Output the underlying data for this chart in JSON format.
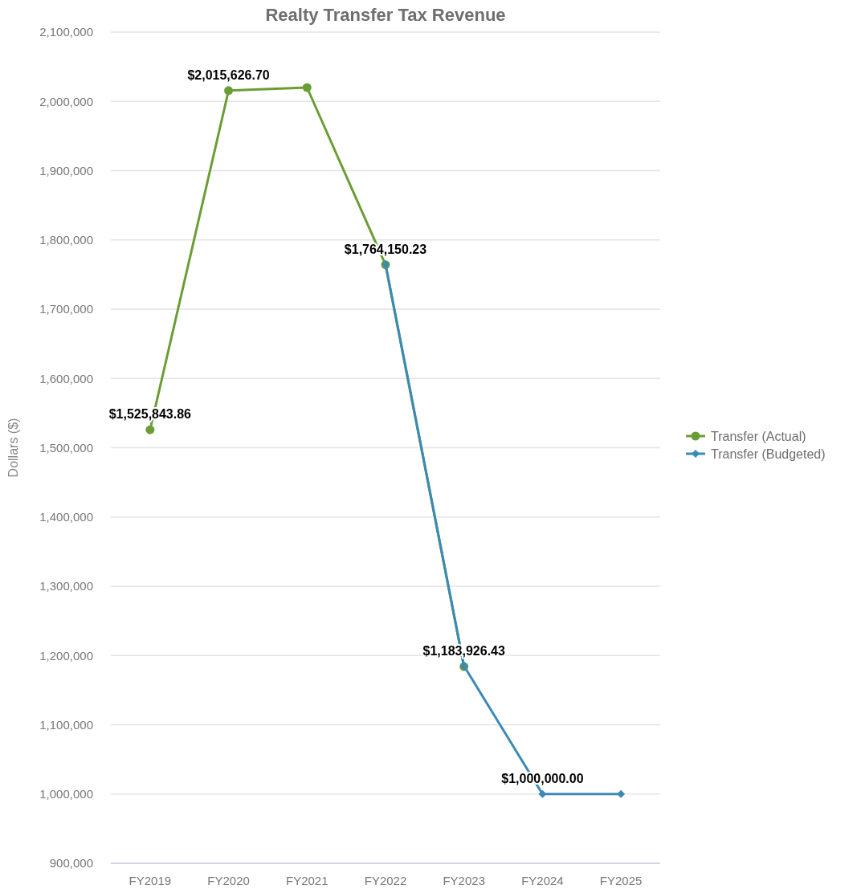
{
  "chart_data": {
    "type": "line",
    "title": "Realty Transfer Tax Revenue",
    "ylabel": "Dollars ($)",
    "categories": [
      "FY2019",
      "FY2020",
      "FY2021",
      "FY2022",
      "FY2023",
      "FY2024",
      "FY2025"
    ],
    "series": [
      {
        "name": "Transfer (Actual)",
        "color": "#6a9e35",
        "marker": "circle",
        "values": [
          1525843.86,
          2015626.7,
          2020000,
          1764150.23,
          1183926.43,
          null,
          null
        ],
        "value_labels": [
          "$1,525,843.86",
          "$2,015,626.70",
          null,
          "$1,764,150.23",
          "$1,183,926.43",
          null,
          null
        ]
      },
      {
        "name": "Transfer (Budgeted)",
        "color": "#3a8ab8",
        "marker": "diamond",
        "values": [
          null,
          null,
          null,
          1765000,
          1185000,
          1000000,
          1000000
        ],
        "value_labels": [
          null,
          null,
          null,
          null,
          null,
          "$1,000,000.00",
          null
        ]
      }
    ],
    "ylim": [
      900000,
      2100000
    ],
    "yticks": [
      {
        "value": 900000,
        "label": "900,000"
      },
      {
        "value": 1000000,
        "label": "1,000,000"
      },
      {
        "value": 1100000,
        "label": "1,100,000"
      },
      {
        "value": 1200000,
        "label": "1,200,000"
      },
      {
        "value": 1300000,
        "label": "1,300,000"
      },
      {
        "value": 1400000,
        "label": "1,400,000"
      },
      {
        "value": 1500000,
        "label": "1,500,000"
      },
      {
        "value": 1600000,
        "label": "1,600,000"
      },
      {
        "value": 1700000,
        "label": "1,700,000"
      },
      {
        "value": 1800000,
        "label": "1,800,000"
      },
      {
        "value": 1900000,
        "label": "1,900,000"
      },
      {
        "value": 2000000,
        "label": "2,000,000"
      },
      {
        "value": 2100000,
        "label": "2,100,000"
      }
    ],
    "grid": "y",
    "legend": "right",
    "line_style": "solid"
  }
}
